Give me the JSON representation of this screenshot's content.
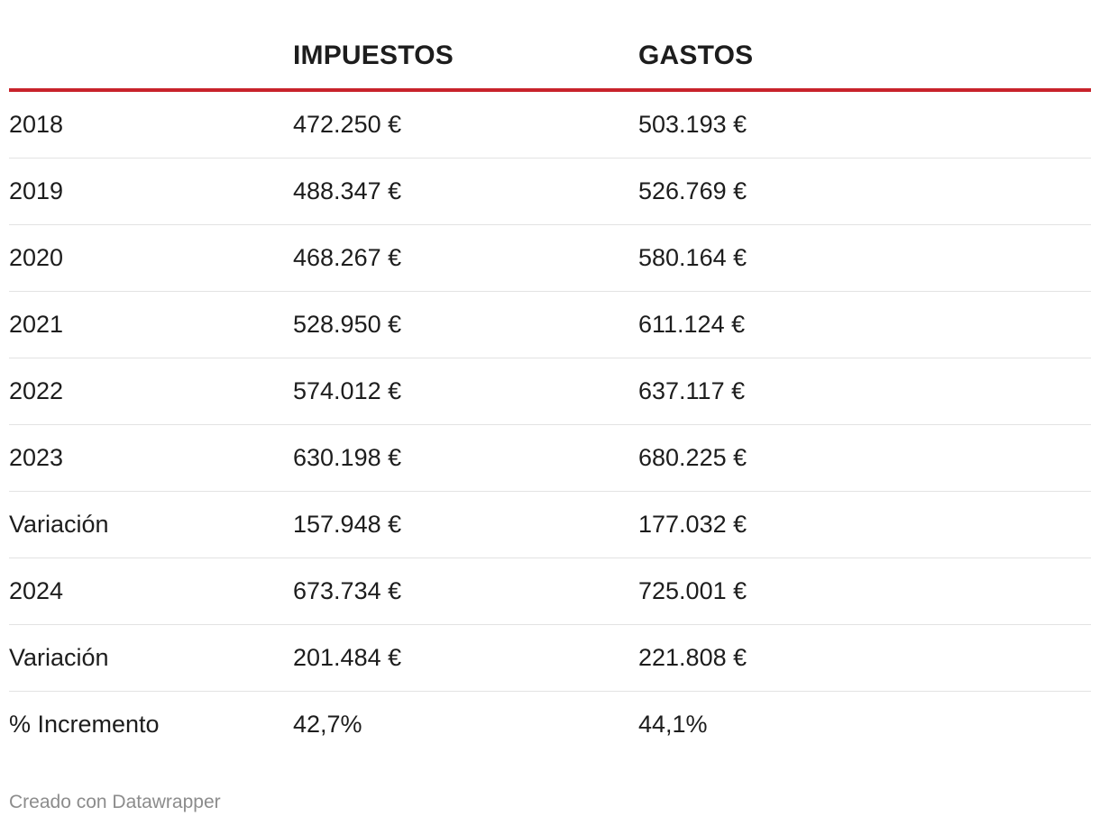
{
  "chart_data": {
    "type": "table",
    "columns": [
      "",
      "IMPUESTOS",
      "GASTOS"
    ],
    "rows": [
      {
        "label": "2018",
        "impuestos": "472.250 €",
        "gastos": "503.193 €"
      },
      {
        "label": "2019",
        "impuestos": "488.347 €",
        "gastos": "526.769 €"
      },
      {
        "label": "2020",
        "impuestos": "468.267 €",
        "gastos": "580.164 €"
      },
      {
        "label": "2021",
        "impuestos": "528.950 €",
        "gastos": "611.124 €"
      },
      {
        "label": "2022",
        "impuestos": "574.012 €",
        "gastos": "637.117 €"
      },
      {
        "label": "2023",
        "impuestos": "630.198 €",
        "gastos": "680.225 €"
      },
      {
        "label": "Variación",
        "impuestos": "157.948 €",
        "gastos": "177.032 €"
      },
      {
        "label": "2024",
        "impuestos": "673.734 €",
        "gastos": "725.001 €"
      },
      {
        "label": "Variación",
        "impuestos": "201.484 €",
        "gastos": "221.808 €"
      },
      {
        "label": "% Incremento",
        "impuestos": "42,7%",
        "gastos": "44,1%"
      }
    ],
    "header_rule_color": "#c8232b",
    "credit": "Creado con Datawrapper"
  }
}
